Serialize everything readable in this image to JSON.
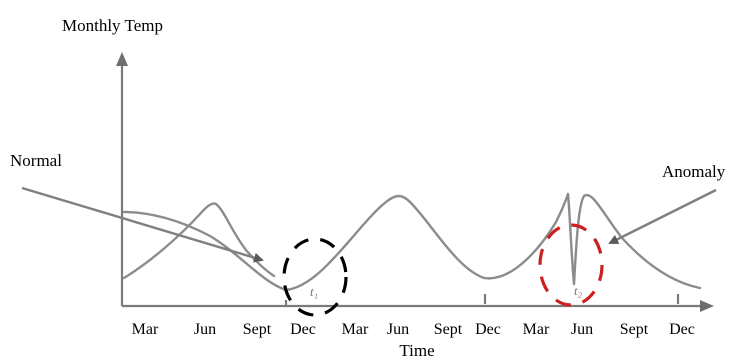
{
  "diagram": {
    "y_axis_label": "Monthly Temp",
    "x_axis_label": "Time",
    "tick_labels": [
      "Mar",
      "Jun",
      "Sept",
      "Dec",
      "Mar",
      "Jun",
      "Sept",
      "Dec",
      "Mar",
      "Jun",
      "Sept",
      "Dec"
    ],
    "callouts": {
      "normal": "Normal",
      "anomaly": "Anomaly"
    },
    "markers": {
      "t1": "t₁",
      "t2": "t₂"
    },
    "colors": {
      "curve": "#8c8c8c",
      "axis": "#7a7a7a",
      "normal_circle": "#000000",
      "anomaly_circle": "#cc1f1f"
    }
  }
}
